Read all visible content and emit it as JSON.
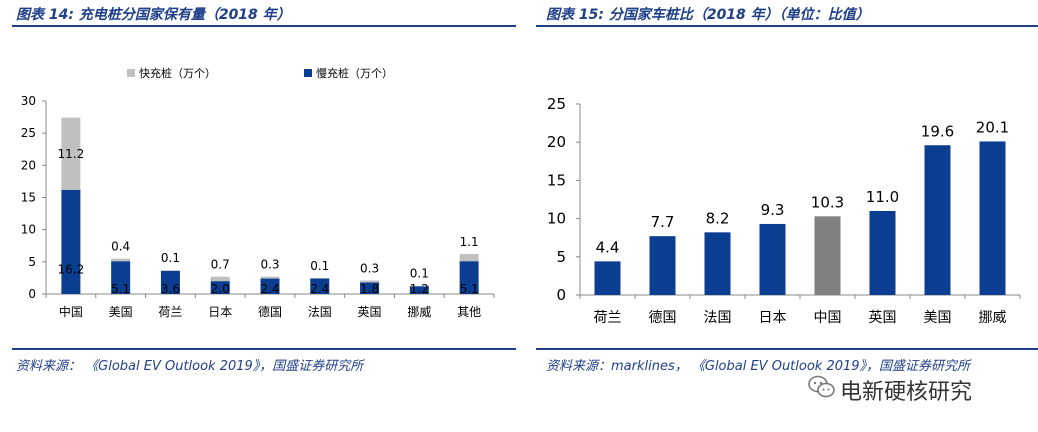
{
  "left": {
    "title": "图表 14:  充电桩分国家保有量（2018 年）",
    "source": "资料来源：  《Global EV Outlook 2019》，国盛证券研究所",
    "chart_data": {
      "type": "bar",
      "stacked": true,
      "categories": [
        "中国",
        "美国",
        "荷兰",
        "日本",
        "德国",
        "法国",
        "英国",
        "挪威",
        "其他"
      ],
      "series": [
        {
          "name": "慢充桩（万个）",
          "values": [
            16.2,
            5.1,
            3.6,
            2.0,
            2.4,
            2.4,
            1.8,
            1.2,
            5.1
          ],
          "color": "#0b3d91"
        },
        {
          "name": "快充桩（万个）",
          "values": [
            11.2,
            0.4,
            0.1,
            0.7,
            0.3,
            0.1,
            0.3,
            0.1,
            1.1
          ],
          "color": "#c0c0c0"
        }
      ],
      "ylim": [
        0,
        30
      ],
      "yticks": [
        "0",
        "5",
        "10",
        "15",
        "20",
        "25",
        "30"
      ],
      "legend_position": "top",
      "grid": false
    }
  },
  "right": {
    "title": "图表 15:  分国家车桩比（2018 年）（单位：比值）",
    "source": "资料来源：marklines，  《Global EV Outlook 2019》，国盛证券研究所",
    "chart_data": {
      "type": "bar",
      "categories": [
        "荷兰",
        "德国",
        "法国",
        "日本",
        "中国",
        "英国",
        "美国",
        "挪威"
      ],
      "values": [
        4.4,
        7.7,
        8.2,
        9.3,
        10.3,
        11.0,
        19.6,
        20.1
      ],
      "labels": [
        "4.4",
        "7.7",
        "8.2",
        "9.3",
        "10.3",
        "11.0",
        "19.6",
        "20.1"
      ],
      "colors": [
        "#0b3d91",
        "#0b3d91",
        "#0b3d91",
        "#0b3d91",
        "#808080",
        "#0b3d91",
        "#0b3d91",
        "#0b3d91"
      ],
      "ylim": [
        0,
        25
      ],
      "yticks": [
        "0",
        "5",
        "10",
        "15",
        "20",
        "25"
      ],
      "grid": false
    }
  },
  "watermark": {
    "icon": "wechat-icon",
    "text": "电新硬核研究"
  }
}
